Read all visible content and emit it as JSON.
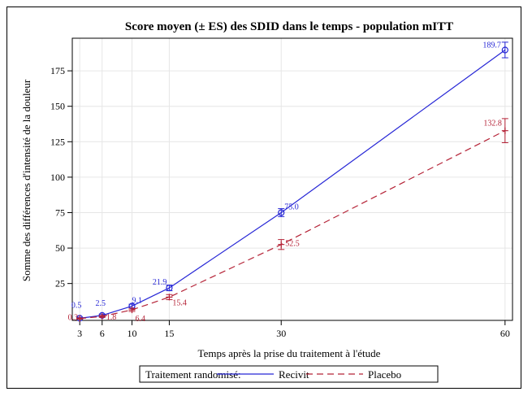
{
  "chart_data": {
    "type": "line",
    "title": "Score moyen (± ES) des SDID dans le temps - population mITT",
    "xlabel": "Temps après la prise du traitement à l'étude",
    "ylabel": "Somme des différences d'intensité de la douleur",
    "x_ticks": [
      3,
      6,
      10,
      15,
      30,
      60
    ],
    "y_ticks": [
      25,
      50,
      75,
      100,
      125,
      150,
      175
    ],
    "xlim": [
      2,
      61
    ],
    "ylim": [
      -1,
      198
    ],
    "grid": true,
    "legend_title": "Traitement randomisé:",
    "legend_placement": "bottom",
    "series": [
      {
        "name": "Recivit",
        "color": "#2727d6",
        "line_style": "solid",
        "marker": "circle",
        "x": [
          3,
          6,
          10,
          15,
          30,
          60
        ],
        "y": [
          0.5,
          2.5,
          9.1,
          21.9,
          75.0,
          189.7
        ],
        "errors": [
          0.6,
          0.9,
          1.3,
          2.0,
          2.8,
          5.5
        ],
        "labels": [
          "0.5",
          "2.5",
          "9.1",
          "21.9",
          "75.0",
          "189.7"
        ]
      },
      {
        "name": "Placebo",
        "color": "#b52337",
        "line_style": "dashed",
        "marker": "plus",
        "x": [
          3,
          6,
          10,
          15,
          30,
          60
        ],
        "y": [
          0.3,
          1.8,
          6.4,
          15.4,
          52.5,
          132.8
        ],
        "errors": [
          0.4,
          0.7,
          1.1,
          1.8,
          3.5,
          8.5
        ],
        "labels": [
          "0.3",
          "1.8",
          "6.4",
          "15.4",
          "52.5",
          "132.8"
        ]
      }
    ]
  }
}
